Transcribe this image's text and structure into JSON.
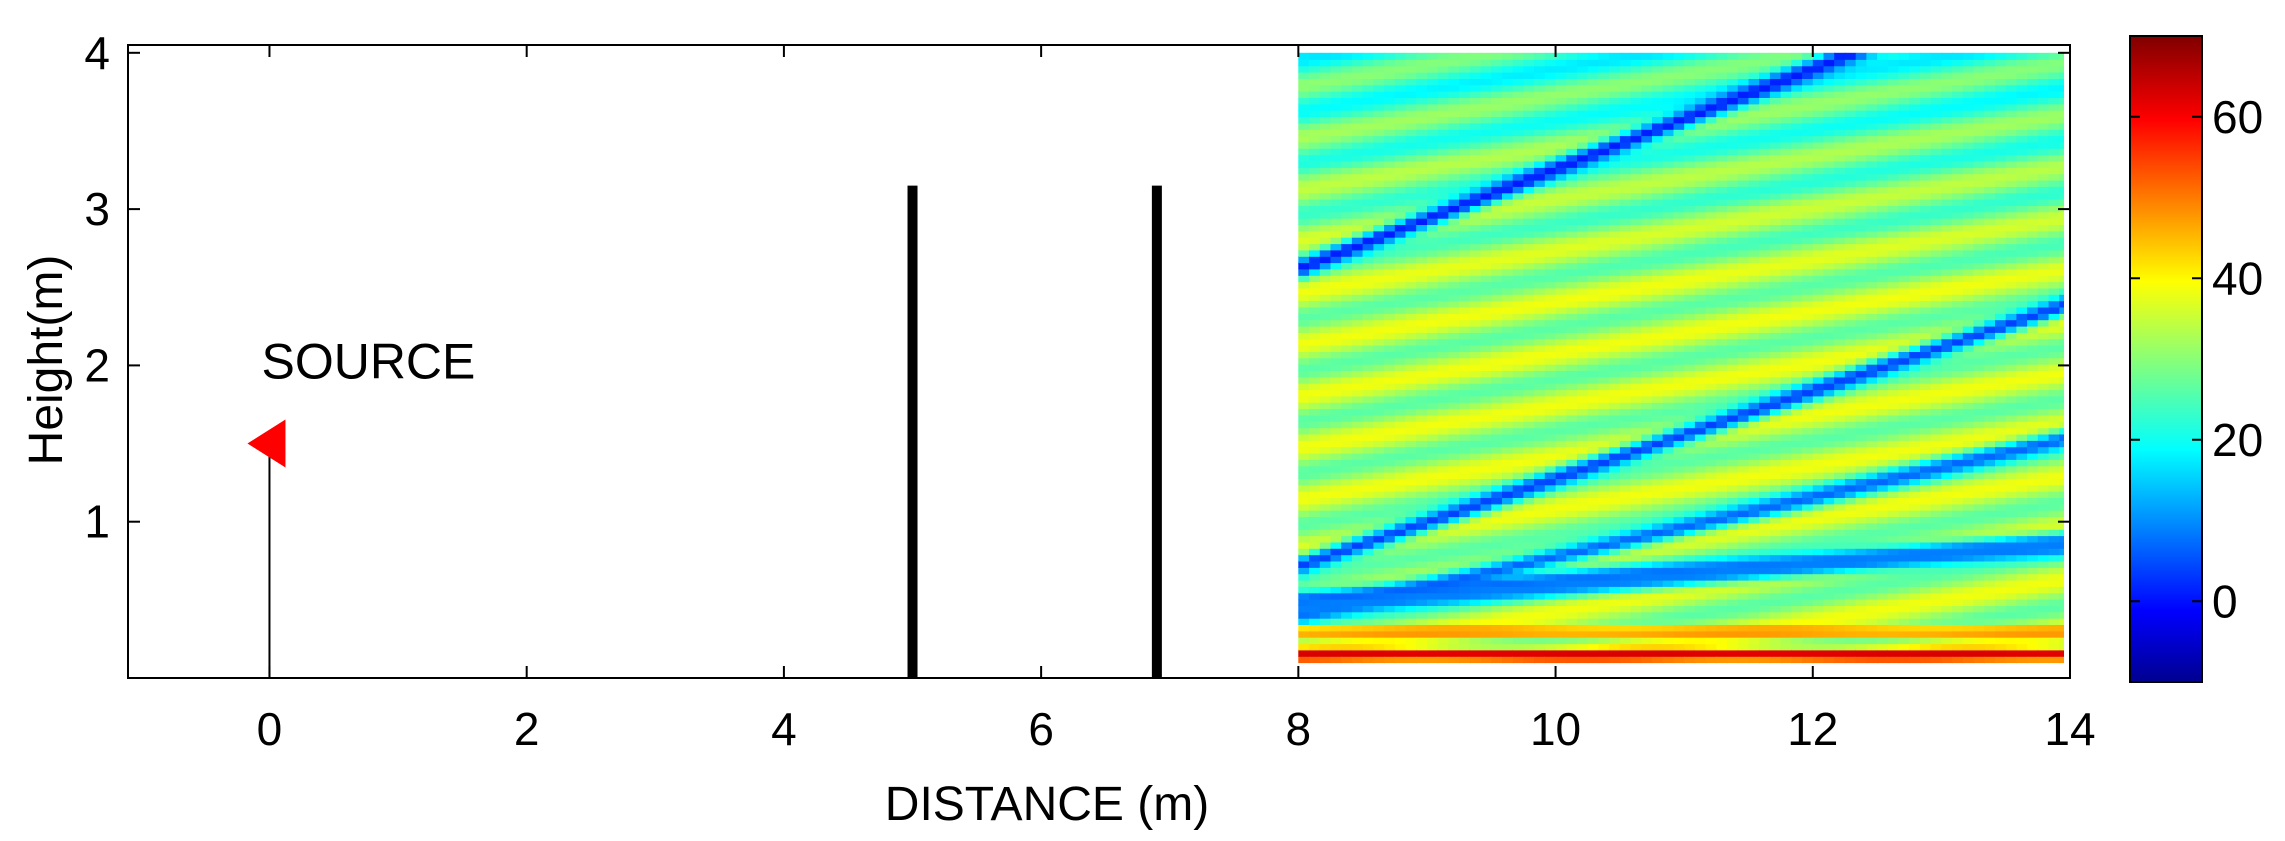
{
  "chart_data": {
    "type": "heatmap",
    "xlabel": "DISTANCE (m)",
    "ylabel": "Height(m)",
    "xlim": [
      -1.1,
      14.0
    ],
    "ylim": [
      0.0,
      4.05
    ],
    "x_ticks": [
      "0",
      "2",
      "4",
      "6",
      "8",
      "10",
      "12",
      "14"
    ],
    "y_ticks": [
      "1",
      "2",
      "3",
      "4"
    ],
    "colorbar": {
      "range": [
        -10,
        70
      ],
      "ticks": [
        "0",
        "20",
        "40",
        "60"
      ],
      "colormap": "jet"
    },
    "source": {
      "label": "SOURCE",
      "x": 0.0,
      "y": 1.5,
      "marker": "triangle-left",
      "color": "#ff0000"
    },
    "barriers": [
      {
        "x": 5.0,
        "y_bottom": 0.0,
        "y_top": 3.15
      },
      {
        "x": 6.9,
        "y_bottom": 0.0,
        "y_top": 3.15
      }
    ],
    "heatmap": {
      "x_range": [
        8.0,
        14.0
      ],
      "y_range": [
        0.1,
        4.0
      ],
      "base_level": 27,
      "interference_bands": [
        {
          "slope": 0.32,
          "offset": 2.62,
          "value": 2
        },
        {
          "slope": 0.28,
          "offset": 0.72,
          "value": 5
        },
        {
          "slope": 0.19,
          "offset": 0.4,
          "value": 8
        },
        {
          "slope": 0.06,
          "offset": 0.5,
          "value": 6
        },
        {
          "slope": 0.07,
          "offset": 0.45,
          "value": 10
        }
      ],
      "hot_bands": [
        {
          "slope": 0.0,
          "offset": 0.15,
          "value": 65
        },
        {
          "slope": 0.0,
          "offset": 0.3,
          "value": 50
        }
      ]
    }
  }
}
